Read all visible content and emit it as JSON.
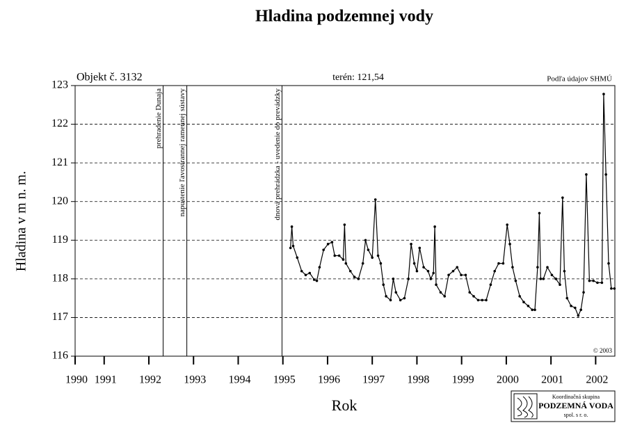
{
  "chart_data": {
    "type": "line",
    "title": "Hladina podzemnej vody",
    "object_label": "Objekt č. 3132",
    "terrain_label": "terén: 121,54",
    "source": "Podľa údajov SHMÚ",
    "copyright": "© 2003",
    "xlabel": "Rok",
    "ylabel": "Hladina v m n. m.",
    "logo": {
      "line1": "Koordinačná skupina",
      "line2": "PODZEMNÁ VODA",
      "line3": "spol. s r. o."
    },
    "xlim": [
      1990.35,
      2002.43
    ],
    "ylim": [
      116,
      123
    ],
    "xticks": [
      {
        "value": 1990.35,
        "label": "1990"
      },
      1991,
      1992,
      1993,
      1994,
      1995,
      1996,
      1997,
      1998,
      1999,
      2000,
      2001,
      2002
    ],
    "yticks": [
      116,
      117,
      118,
      119,
      120,
      121,
      122,
      123
    ],
    "grid": true,
    "events": [
      {
        "x": 1992.32,
        "label": "prehradenie Dunaja"
      },
      {
        "x": 1992.85,
        "label": "napustenie ľavostrannej ramennej sústavy"
      },
      {
        "x": 1994.98,
        "label": "dnová prehrádzka - uvedenie do prevádzky"
      }
    ],
    "series": [
      {
        "color": "#000000",
        "x": [
          1995.17,
          1995.2,
          1995.23,
          1995.32,
          1995.42,
          1995.51,
          1995.6,
          1995.7,
          1995.76,
          1995.82,
          1995.91,
          1996.01,
          1996.1,
          1996.16,
          1996.26,
          1996.35,
          1996.38,
          1996.41,
          1996.51,
          1996.6,
          1996.69,
          1996.79,
          1996.85,
          1996.91,
          1997.0,
          1997.07,
          1997.13,
          1997.19,
          1997.25,
          1997.31,
          1997.41,
          1997.47,
          1997.53,
          1997.63,
          1997.72,
          1997.81,
          1997.87,
          1997.94,
          1998.0,
          1998.06,
          1998.15,
          1998.25,
          1998.31,
          1998.37,
          1998.4,
          1998.43,
          1998.53,
          1998.62,
          1998.71,
          1998.81,
          1998.9,
          1998.99,
          1999.09,
          1999.18,
          1999.27,
          1999.37,
          1999.46,
          1999.55,
          1999.65,
          1999.74,
          1999.83,
          1999.93,
          2000.02,
          2000.08,
          2000.14,
          2000.21,
          2000.3,
          2000.39,
          2000.49,
          2000.58,
          2000.64,
          2000.7,
          2000.74,
          2000.77,
          2000.83,
          2000.92,
          2001.02,
          2001.11,
          2001.2,
          2001.26,
          2001.3,
          2001.36,
          2001.45,
          2001.54,
          2001.61,
          2001.67,
          2001.73,
          2001.79,
          2001.86,
          2001.95,
          2002.04,
          2002.14,
          2002.18,
          2002.23,
          2002.29,
          2002.35,
          2002.42
        ],
        "values": [
          118.8,
          119.35,
          118.85,
          118.55,
          118.2,
          118.1,
          118.15,
          117.98,
          117.95,
          118.3,
          118.75,
          118.9,
          118.95,
          118.6,
          118.6,
          118.5,
          119.4,
          118.4,
          118.2,
          118.05,
          118.0,
          118.4,
          119.0,
          118.75,
          118.55,
          120.05,
          118.6,
          118.4,
          117.85,
          117.55,
          117.45,
          118.0,
          117.65,
          117.45,
          117.5,
          118.0,
          118.9,
          118.4,
          118.2,
          118.8,
          118.3,
          118.2,
          118.0,
          118.15,
          119.35,
          117.85,
          117.65,
          117.55,
          118.1,
          118.2,
          118.3,
          118.1,
          118.1,
          117.65,
          117.55,
          117.45,
          117.45,
          117.45,
          117.85,
          118.2,
          118.4,
          118.4,
          119.4,
          118.9,
          118.3,
          117.95,
          117.55,
          117.4,
          117.3,
          117.2,
          117.2,
          118.3,
          119.7,
          118.0,
          118.0,
          118.3,
          118.1,
          118.0,
          117.85,
          120.1,
          118.2,
          117.5,
          117.3,
          117.25,
          117.05,
          117.2,
          117.65,
          120.7,
          117.95,
          117.95,
          117.9,
          117.9,
          122.78,
          120.7,
          118.4,
          117.75,
          117.75
        ]
      }
    ]
  }
}
